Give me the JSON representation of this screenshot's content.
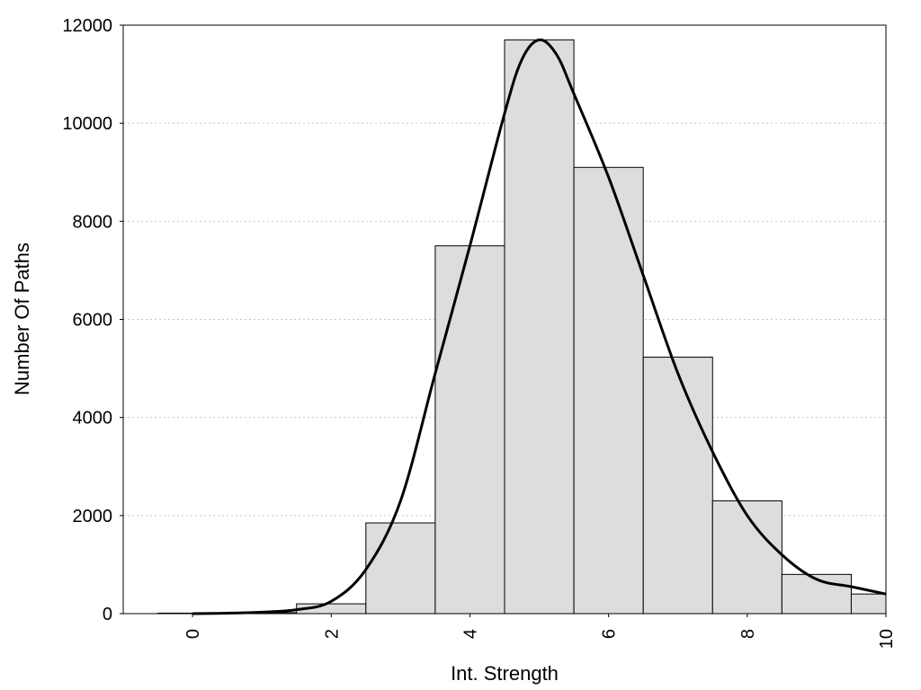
{
  "chart_data": {
    "type": "bar",
    "title": "",
    "xlabel": "Int. Strength",
    "ylabel": "Number Of Paths",
    "xlim": [
      -1,
      10
    ],
    "ylim": [
      0,
      12000
    ],
    "x_ticks": [
      "0",
      "2",
      "4",
      "6",
      "8",
      "10"
    ],
    "y_ticks": [
      "0",
      "2000",
      "4000",
      "6000",
      "8000",
      "10000",
      "12000"
    ],
    "grid": "horizontal dotted",
    "legend": "none",
    "bar_color": "#dddddd",
    "bars": {
      "x": [
        0,
        1,
        2,
        3,
        4,
        5,
        6,
        7,
        8,
        9,
        10
      ],
      "values": [
        10,
        20,
        200,
        1850,
        7500,
        11700,
        9100,
        5230,
        2300,
        800,
        400
      ]
    },
    "curve": {
      "x": [
        0,
        0.5,
        1,
        1.5,
        2,
        2.5,
        3,
        3.5,
        4,
        4.5,
        4.75,
        5,
        5.25,
        5.5,
        6,
        6.5,
        7,
        7.5,
        8,
        8.5,
        9,
        9.5,
        10
      ],
      "y": [
        0,
        10,
        30,
        80,
        250,
        900,
        2300,
        4900,
        7500,
        10200,
        11300,
        11700,
        11400,
        10600,
        8900,
        6900,
        4900,
        3300,
        2000,
        1200,
        700,
        550,
        400
      ]
    }
  }
}
